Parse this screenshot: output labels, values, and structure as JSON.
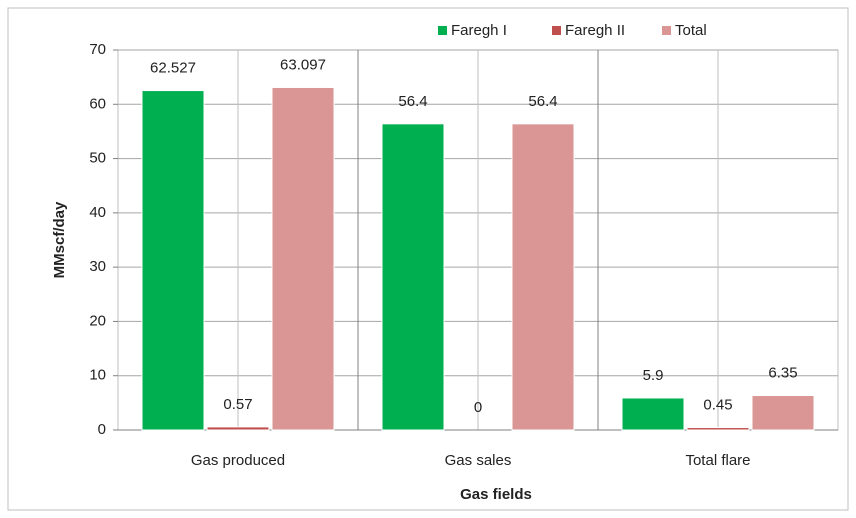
{
  "chart_data": {
    "type": "bar",
    "x_label": "Gas fields",
    "y_label": "MMscf/day",
    "categories": [
      "Gas produced",
      "Gas sales",
      "Total flare"
    ],
    "series": [
      {
        "name": "Faregh I",
        "color": "#00b050",
        "values": [
          62.527,
          56.4,
          5.9
        ]
      },
      {
        "name": "Faregh II",
        "color": "#c0504d",
        "values": [
          0.57,
          0,
          0.45
        ]
      },
      {
        "name": "Total",
        "color": "#d99694",
        "values": [
          63.097,
          56.4,
          6.35
        ]
      }
    ],
    "ylim": [
      0,
      70
    ],
    "yticks": [
      0,
      10,
      20,
      30,
      40,
      50,
      60,
      70
    ],
    "grid": true,
    "legend": "top"
  }
}
